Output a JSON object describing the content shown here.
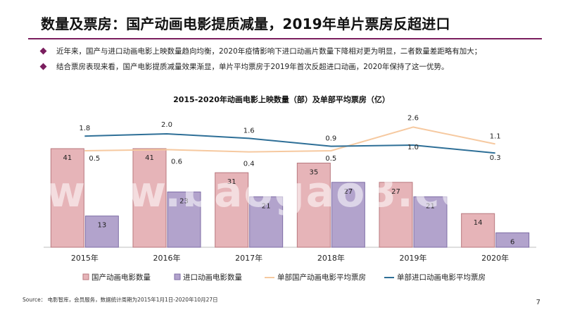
{
  "page": {
    "title": "数量及票房：国产动画电影提质减量，2019年单片票房反超进口",
    "bullets": [
      "近年来，国产与进口动画电影上映数量趋向均衡，2020年疫情影响下进口动画片数量下降相对更为明显，二者数量差距略有加大；",
      "结合票房表现来看，国产电影提质减量效果渐显，单片平均票房于2019年首次反超进口动画，2020年保持了这一优势。"
    ],
    "source": "Source： 电影智库，会员服务，数据统计周期为2015年1月1日-2020年10月27日",
    "page_number": "7",
    "watermark": "www.baogao8.com"
  },
  "colors": {
    "accent": "#7a1e5e",
    "domestic_bar": "#e6b4b8",
    "domestic_bar_border": "#b8787e",
    "imported_bar": "#b2a3cc",
    "imported_bar_border": "#7f6ea6",
    "domestic_line": "#f6c9a0",
    "imported_line": "#2e6f97"
  },
  "chart_data": {
    "type": "bar",
    "title": "2015-2020年动画电影上映数量（部）及单部平均票房（亿）",
    "categories": [
      "2015年",
      "2016年",
      "2017年",
      "2018年",
      "2019年",
      "2020年"
    ],
    "series": [
      {
        "name": "国产动画电影数量",
        "kind": "bar",
        "values": [
          41,
          41,
          31,
          35,
          27,
          14
        ]
      },
      {
        "name": "进口动画电影数量",
        "kind": "bar",
        "values": [
          13,
          23,
          21,
          27,
          21,
          6
        ]
      },
      {
        "name": "单部国产动画电影平均票房",
        "kind": "line",
        "values": [
          0.5,
          0.6,
          0.4,
          0.5,
          2.6,
          1.1
        ]
      },
      {
        "name": "单部进口动画电影平均票房",
        "kind": "line",
        "values": [
          1.8,
          2.0,
          1.6,
          0.9,
          1.0,
          0.3
        ]
      }
    ],
    "legend": "bottom",
    "grid": false
  }
}
